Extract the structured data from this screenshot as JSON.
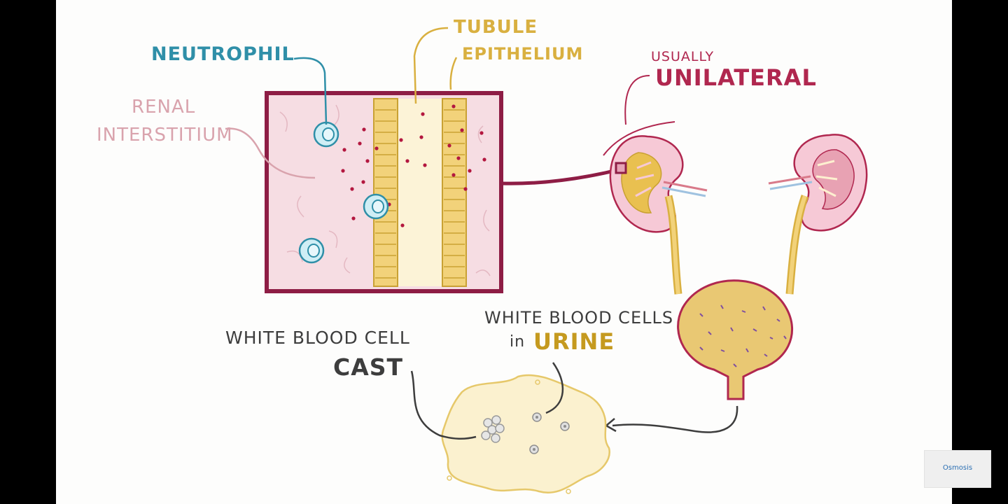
{
  "labels": {
    "neutrophil": "NEUTROPHIL",
    "renal_line1": "RENAL",
    "renal_line2": "INTERSTITIUM",
    "tubule_line1": "TUBULE",
    "tubule_line2": "EPITHELIUM",
    "usually": "USUALLY",
    "unilateral": "UNILATERAL",
    "wbc_cast_line1": "WHITE BLOOD CELL",
    "wbc_cast_line2": "CAST",
    "wbc_urine_line1": "WHITE BLOOD CELLS",
    "wbc_urine_in": "in",
    "wbc_urine_urine": "URINE"
  },
  "logo": {
    "text": "Osmosis"
  },
  "colors": {
    "neutrophil": "#2f8fa8",
    "renal_interstitium": "#d9a3ad",
    "tubule": "#d9b040",
    "unilateral": "#b0274f",
    "box_border": "#8e1d45",
    "interstitium_fill": "#f6dde3",
    "tubule_cell": "#f2d27a",
    "urine": "#e9c873"
  }
}
